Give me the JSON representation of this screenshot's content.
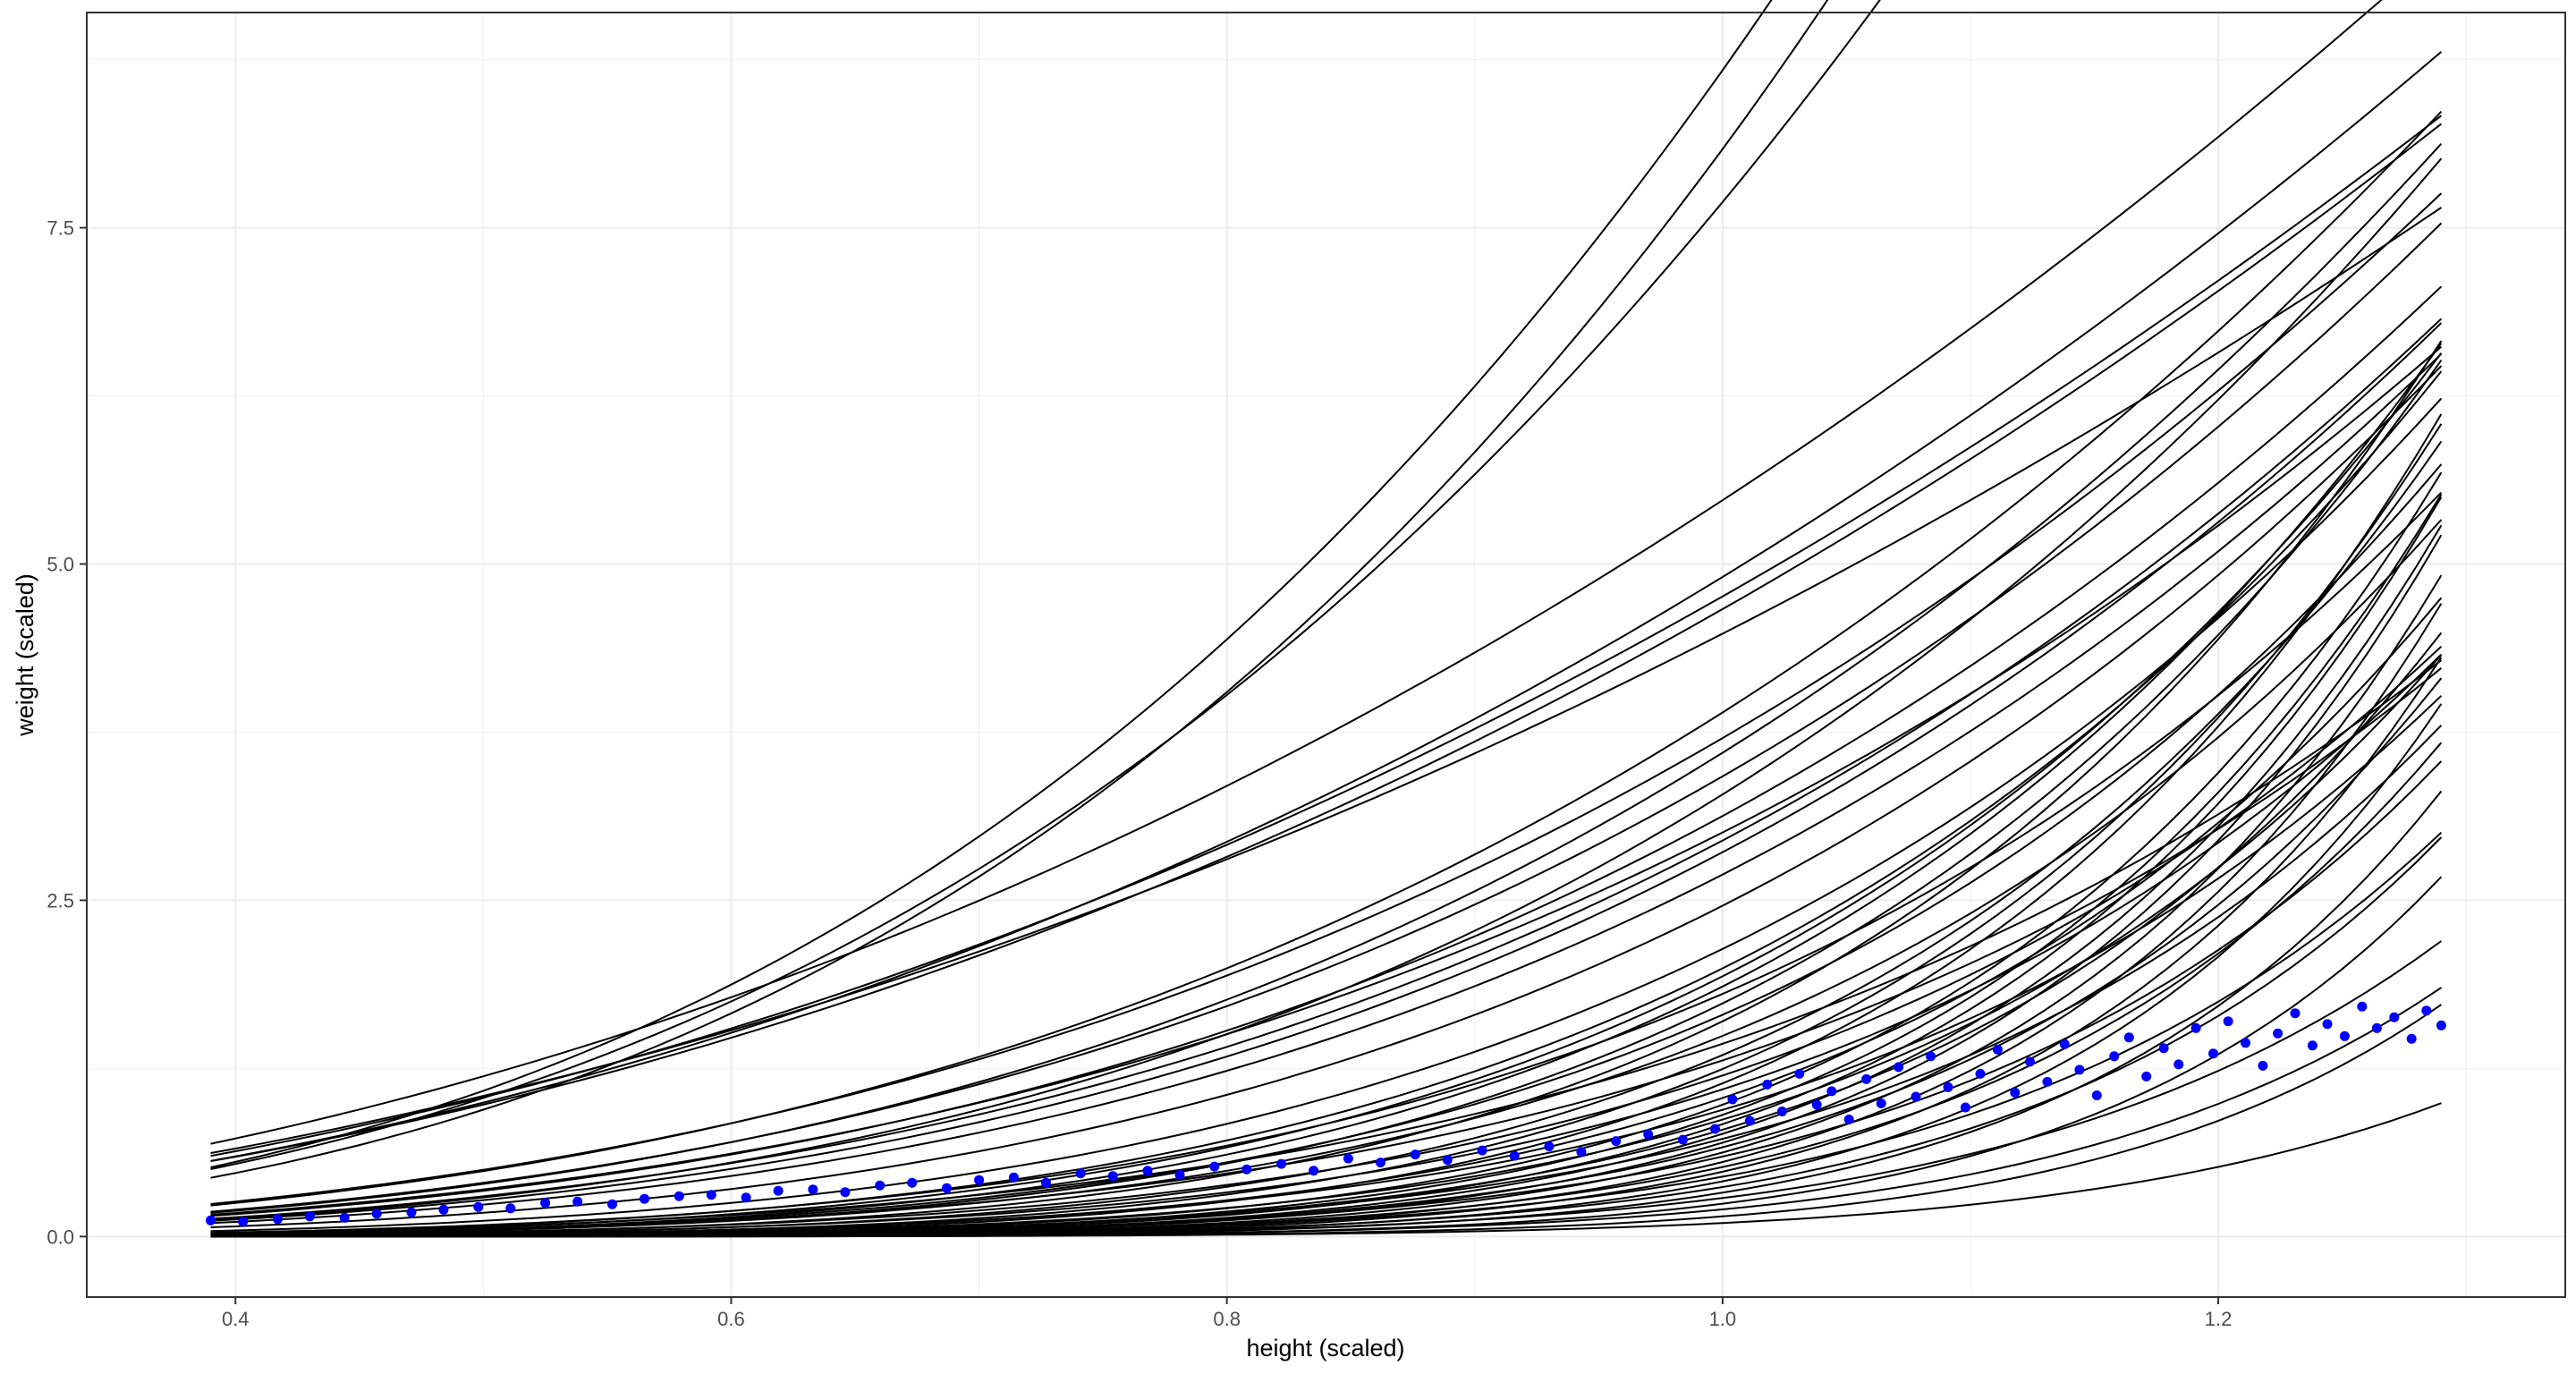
{
  "chart_data": {
    "type": "line",
    "title": "",
    "xlabel": "height (scaled)",
    "ylabel": "weight (scaled)",
    "xlim": [
      0.34,
      1.34
    ],
    "ylim": [
      -0.45,
      9.1
    ],
    "x_ticks": [
      0.4,
      0.6,
      0.8,
      1.0,
      1.2
    ],
    "x_tick_labels": [
      "0.4",
      "0.6",
      "0.8",
      "1.0",
      "1.2"
    ],
    "y_ticks": [
      0.0,
      2.5,
      5.0,
      7.5
    ],
    "y_tick_labels": [
      "0.0",
      "2.5",
      "5.0",
      "7.5"
    ],
    "grid": true,
    "legend": "none",
    "line_color": "#000000",
    "point_color": "#0000ff",
    "curve_x_range": [
      0.39,
      1.29
    ],
    "curve_model": "weight = exp(intercept) * height^exponent",
    "series": [
      {
        "intercept": 2.16,
        "exponent": 3.0
      },
      {
        "intercept": 2.09,
        "exponent": 3.1
      },
      {
        "intercept": 2.04,
        "exponent": 2.9
      },
      {
        "intercept": 1.7,
        "exponent": 2.2
      },
      {
        "intercept": 1.59,
        "exponent": 2.3
      },
      {
        "intercept": 1.56,
        "exponent": 2.2
      },
      {
        "intercept": 1.54,
        "exponent": 2.25
      },
      {
        "intercept": 1.5,
        "exponent": 2.1
      },
      {
        "intercept": 1.36,
        "exponent": 3.0
      },
      {
        "intercept": 1.31,
        "exponent": 2.9
      },
      {
        "intercept": 1.28,
        "exponent": 3.2
      },
      {
        "intercept": 1.23,
        "exponent": 3.1
      },
      {
        "intercept": 1.19,
        "exponent": 3.5
      },
      {
        "intercept": 1.14,
        "exponent": 3.2
      },
      {
        "intercept": 1.1,
        "exponent": 3.1
      },
      {
        "intercept": 1.08,
        "exponent": 3.3
      },
      {
        "intercept": 1.05,
        "exponent": 3.4
      },
      {
        "intercept": 0.99,
        "exponent": 3.5
      },
      {
        "intercept": 0.9,
        "exponent": 3.8
      },
      {
        "intercept": 0.76,
        "exponent": 4.2
      },
      {
        "intercept": 0.69,
        "exponent": 4.6
      },
      {
        "intercept": 0.66,
        "exponent": 4.8
      },
      {
        "intercept": 0.62,
        "exponent": 5.0
      },
      {
        "intercept": 0.59,
        "exponent": 4.4
      },
      {
        "intercept": 0.55,
        "exponent": 5.2
      },
      {
        "intercept": 0.5,
        "exponent": 4.9
      },
      {
        "intercept": 0.47,
        "exponent": 5.6
      },
      {
        "intercept": 0.4,
        "exponent": 5.0
      },
      {
        "intercept": 0.36,
        "exponent": 4.3
      },
      {
        "intercept": 0.3,
        "exponent": 5.8
      },
      {
        "intercept": 0.27,
        "exponent": 4.6
      },
      {
        "intercept": 0.22,
        "exponent": 6.2
      },
      {
        "intercept": 0.18,
        "exponent": 5.1
      },
      {
        "intercept": 0.13,
        "exponent": 6.6
      },
      {
        "intercept": 0.09,
        "exponent": 5.4
      },
      {
        "intercept": 0.03,
        "exponent": 6.0
      },
      {
        "intercept": -0.02,
        "exponent": 6.9
      },
      {
        "intercept": -0.06,
        "exponent": 5.7
      },
      {
        "intercept": -0.1,
        "exponent": 7.1
      },
      {
        "intercept": -0.14,
        "exponent": 6.3
      },
      {
        "intercept": -0.18,
        "exponent": 7.4
      },
      {
        "intercept": -0.23,
        "exponent": 6.8
      },
      {
        "intercept": -0.27,
        "exponent": 7.6
      },
      {
        "intercept": -0.32,
        "exponent": 6.5
      },
      {
        "intercept": -0.36,
        "exponent": 7.9
      },
      {
        "intercept": -0.41,
        "exponent": 7.2
      },
      {
        "intercept": -0.47,
        "exponent": 8.1
      },
      {
        "intercept": -0.52,
        "exponent": 7.0
      },
      {
        "intercept": -0.59,
        "exponent": 8.4
      },
      {
        "intercept": -0.66,
        "exponent": 7.7
      },
      {
        "intercept": -0.73,
        "exponent": 8.6
      },
      {
        "intercept": -0.81,
        "exponent": 7.5
      },
      {
        "intercept": -0.89,
        "exponent": 8.9
      },
      {
        "intercept": -1.0,
        "exponent": 8.2
      },
      {
        "intercept": -1.12,
        "exponent": 9.1
      },
      {
        "intercept": -1.25,
        "exponent": 8.0
      },
      {
        "intercept": -1.41,
        "exponent": 9.4
      },
      {
        "intercept": -1.6,
        "exponent": 8.7
      },
      {
        "intercept": -1.9,
        "exponent": 9.6
      },
      {
        "intercept": -2.3,
        "exponent": 9.0
      }
    ],
    "points": [
      [
        0.39,
        0.12
      ],
      [
        0.403,
        0.11
      ],
      [
        0.417,
        0.13
      ],
      [
        0.43,
        0.15
      ],
      [
        0.444,
        0.14
      ],
      [
        0.457,
        0.17
      ],
      [
        0.471,
        0.18
      ],
      [
        0.484,
        0.2
      ],
      [
        0.498,
        0.22
      ],
      [
        0.511,
        0.21
      ],
      [
        0.525,
        0.25
      ],
      [
        0.538,
        0.26
      ],
      [
        0.552,
        0.24
      ],
      [
        0.565,
        0.28
      ],
      [
        0.579,
        0.3
      ],
      [
        0.592,
        0.31
      ],
      [
        0.606,
        0.29
      ],
      [
        0.619,
        0.34
      ],
      [
        0.633,
        0.35
      ],
      [
        0.646,
        0.33
      ],
      [
        0.66,
        0.38
      ],
      [
        0.673,
        0.4
      ],
      [
        0.687,
        0.36
      ],
      [
        0.7,
        0.42
      ],
      [
        0.714,
        0.44
      ],
      [
        0.727,
        0.4
      ],
      [
        0.741,
        0.47
      ],
      [
        0.754,
        0.45
      ],
      [
        0.768,
        0.49
      ],
      [
        0.781,
        0.46
      ],
      [
        0.795,
        0.52
      ],
      [
        0.808,
        0.5
      ],
      [
        0.822,
        0.54
      ],
      [
        0.835,
        0.49
      ],
      [
        0.849,
        0.58
      ],
      [
        0.862,
        0.55
      ],
      [
        0.876,
        0.61
      ],
      [
        0.889,
        0.57
      ],
      [
        0.903,
        0.64
      ],
      [
        0.916,
        0.6
      ],
      [
        0.93,
        0.67
      ],
      [
        0.943,
        0.63
      ],
      [
        0.957,
        0.71
      ],
      [
        0.97,
        0.76
      ],
      [
        0.984,
        0.72
      ],
      [
        0.997,
        0.8
      ],
      [
        1.004,
        1.02
      ],
      [
        1.011,
        0.86
      ],
      [
        1.018,
        1.13
      ],
      [
        1.024,
        0.93
      ],
      [
        1.031,
        1.21
      ],
      [
        1.038,
        0.98
      ],
      [
        1.044,
        1.08
      ],
      [
        1.051,
        0.87
      ],
      [
        1.058,
        1.17
      ],
      [
        1.064,
        0.99
      ],
      [
        1.071,
        1.26
      ],
      [
        1.078,
        1.04
      ],
      [
        1.084,
        1.34
      ],
      [
        1.091,
        1.11
      ],
      [
        1.098,
        0.96
      ],
      [
        1.104,
        1.21
      ],
      [
        1.111,
        1.39
      ],
      [
        1.118,
        1.07
      ],
      [
        1.124,
        1.3
      ],
      [
        1.131,
        1.15
      ],
      [
        1.138,
        1.43
      ],
      [
        1.144,
        1.24
      ],
      [
        1.151,
        1.05
      ],
      [
        1.158,
        1.34
      ],
      [
        1.164,
        1.48
      ],
      [
        1.171,
        1.19
      ],
      [
        1.178,
        1.4
      ],
      [
        1.184,
        1.28
      ],
      [
        1.191,
        1.55
      ],
      [
        1.198,
        1.36
      ],
      [
        1.204,
        1.6
      ],
      [
        1.211,
        1.44
      ],
      [
        1.218,
        1.27
      ],
      [
        1.224,
        1.51
      ],
      [
        1.231,
        1.66
      ],
      [
        1.238,
        1.42
      ],
      [
        1.244,
        1.58
      ],
      [
        1.251,
        1.49
      ],
      [
        1.258,
        1.71
      ],
      [
        1.264,
        1.55
      ],
      [
        1.271,
        1.63
      ],
      [
        1.278,
        1.47
      ],
      [
        1.284,
        1.68
      ],
      [
        1.29,
        1.57
      ]
    ]
  }
}
